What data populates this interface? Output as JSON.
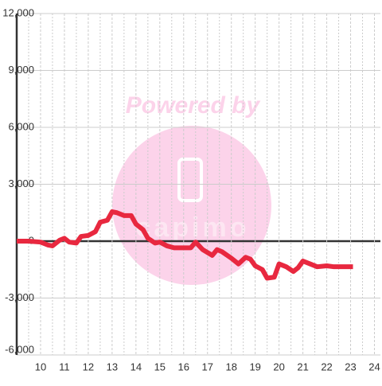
{
  "chart_data": {
    "type": "line",
    "watermark": "Powered by",
    "watermark_logo": "capimo",
    "x": [
      9.0,
      9.5,
      10.0,
      10.3,
      10.5,
      10.8,
      11.0,
      11.2,
      11.5,
      11.7,
      12.0,
      12.3,
      12.5,
      12.8,
      13.0,
      13.2,
      13.5,
      13.8,
      14.0,
      14.3,
      14.5,
      14.8,
      15.0,
      15.3,
      15.6,
      16.0,
      16.3,
      16.5,
      16.8,
      17.2,
      17.4,
      17.6,
      18.0,
      18.3,
      18.6,
      18.8,
      19.0,
      19.3,
      19.5,
      19.8,
      20.0,
      20.3,
      20.6,
      20.8,
      21.0,
      21.3,
      21.6,
      22.0,
      22.3,
      22.6,
      23.0,
      23.1
    ],
    "series": [
      {
        "color": "#e8283f",
        "values": [
          0,
          0,
          -50,
          -200,
          -250,
          50,
          150,
          -50,
          -100,
          250,
          300,
          500,
          1000,
          1100,
          1550,
          1500,
          1350,
          1350,
          900,
          600,
          150,
          -100,
          -50,
          -250,
          -350,
          -350,
          -350,
          -50,
          -450,
          -750,
          -450,
          -550,
          -900,
          -1200,
          -850,
          -950,
          -1300,
          -1500,
          -1950,
          -1900,
          -1200,
          -1350,
          -1600,
          -1400,
          -1050,
          -1200,
          -1350,
          -1300,
          -1350,
          -1350,
          -1350,
          -1350
        ]
      }
    ],
    "xlim": [
      9,
      24.25
    ],
    "xticks": [
      10,
      11,
      12,
      13,
      14,
      15,
      16,
      17,
      18,
      19,
      20,
      21,
      22,
      23,
      24
    ],
    "ylim": [
      -6000,
      12000
    ],
    "yticks": [
      {
        "value": -6000,
        "label": "-6,000"
      },
      {
        "value": -3000,
        "label": "-3,000"
      },
      0,
      {
        "value": 3000,
        "label": "3,000"
      },
      {
        "value": 6000,
        "label": "6,000"
      },
      {
        "value": 9000,
        "label": "9,000"
      },
      {
        "value": 12000,
        "label": "12,000"
      }
    ],
    "grid": true
  }
}
